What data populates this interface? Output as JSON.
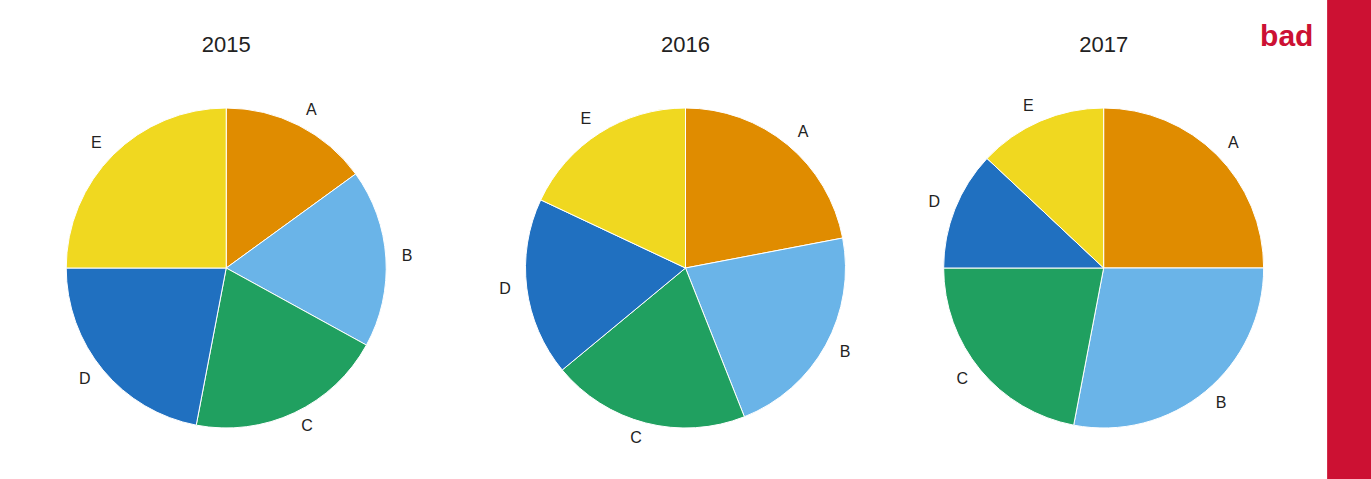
{
  "chart_data": [
    {
      "type": "pie",
      "title": "2015",
      "categories": [
        "A",
        "B",
        "C",
        "D",
        "E"
      ],
      "values": [
        15,
        18,
        20,
        22,
        25
      ],
      "colors": [
        "#E08C00",
        "#6AB4E8",
        "#20A060",
        "#2070C0",
        "#F0D820"
      ]
    },
    {
      "type": "pie",
      "title": "2016",
      "categories": [
        "A",
        "B",
        "C",
        "D",
        "E"
      ],
      "values": [
        22,
        22,
        20,
        18,
        18
      ],
      "colors": [
        "#E08C00",
        "#6AB4E8",
        "#20A060",
        "#2070C0",
        "#F0D820"
      ]
    },
    {
      "type": "pie",
      "title": "2017",
      "categories": [
        "A",
        "B",
        "C",
        "D",
        "E"
      ],
      "values": [
        25,
        28,
        22,
        12,
        13
      ],
      "colors": [
        "#E08C00",
        "#6AB4E8",
        "#20A060",
        "#2070C0",
        "#F0D820"
      ],
      "annotations": [
        {
          "text": "bad",
          "color": "#CC1133"
        }
      ]
    }
  ]
}
